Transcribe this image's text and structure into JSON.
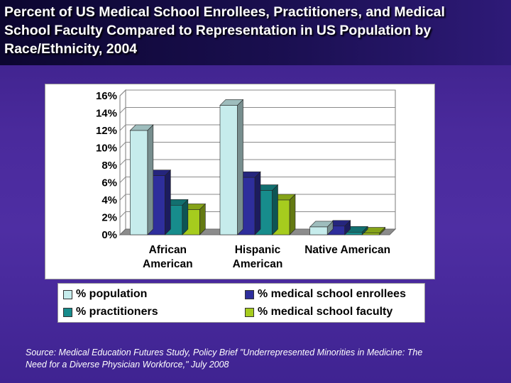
{
  "slide": {
    "title": "Percent of US Medical School Enrollees, Practitioners, and Medical\nSchool Faculty Compared to Representation in US Population by\nRace/Ethnicity, 2004",
    "source": "Source: Medical Education Futures Study, Policy Brief \"Underrepresented Minorities in Medicine: The\nNeed for a Diverse Physician Workforce,\" July 2008"
  },
  "chart_data": {
    "type": "bar",
    "title": "Percent of US Medical School Enrollees, Practitioners, and Medical School Faculty Compared to Representation in US Population by Race/Ethnicity, 2004",
    "categories": [
      [
        "African",
        "American"
      ],
      [
        "Hispanic",
        "American"
      ],
      [
        "Native American"
      ]
    ],
    "ylim": [
      0,
      16
    ],
    "yticks": [
      0,
      2,
      4,
      6,
      8,
      10,
      12,
      14,
      16
    ],
    "ytick_labels": [
      "0%",
      "2%",
      "4%",
      "6%",
      "8%",
      "10%",
      "12%",
      "14%",
      "16%"
    ],
    "grid": true,
    "legend_position": "bottom",
    "series": [
      {
        "name": "% population",
        "color": "#c6ecec",
        "values": [
          12.0,
          14.9,
          0.9
        ]
      },
      {
        "name": "% medical school enrollees",
        "color": "#2e2e9c",
        "values": [
          6.8,
          6.6,
          1.0
        ]
      },
      {
        "name": "% practitioners",
        "color": "#178c8c",
        "values": [
          3.4,
          5.1,
          0.3
        ]
      },
      {
        "name": "% medical school faculty",
        "color": "#a6cc1e",
        "values": [
          2.9,
          4.0,
          0.2
        ]
      }
    ]
  }
}
